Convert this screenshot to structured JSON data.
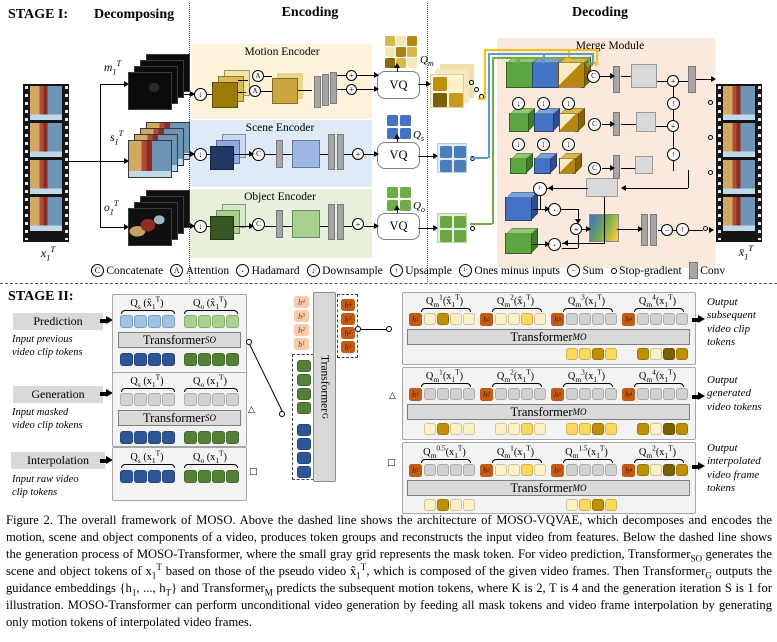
{
  "stage1": {
    "label": "STAGE I:",
    "col_decomposing": "Decomposing",
    "col_encoding": "Encoding",
    "col_decoding": "Decoding",
    "input_video_label": "x~1~^T^",
    "output_video_label": "x̄~1~^T^",
    "frame_count": 4,
    "decomposed_labels": {
      "motion": "m~1~^T^",
      "scene": "s~1~^T^",
      "object": "o~1~^T^"
    },
    "encoders": {
      "motion": {
        "title": "Motion Encoder",
        "vq_label": "VQ",
        "codebook_label": "Q~m~"
      },
      "scene": {
        "title": "Scene Encoder",
        "vq_label": "VQ",
        "codebook_label": "Q~s~"
      },
      "object": {
        "title": "Object Encoder",
        "vq_label": "VQ",
        "codebook_label": "Q~o~"
      }
    },
    "merge_module_title": "Merge Module",
    "codebooks": {
      "motion": [
        "#D8B94E",
        "#F5E8B8",
        "#B8860B",
        "#F5E8B8",
        "#A8811A",
        "#D8B94E",
        "#8A6D00",
        "#D8B94E",
        "#F5E8B8"
      ],
      "scene": [
        "#4472C4",
        "#4472C4",
        "#4472C4",
        "#4472C4"
      ],
      "object": [
        "#70AD47",
        "#70AD47",
        "#70AD47",
        "#70AD47"
      ]
    },
    "out_grids": {
      "motion": [
        "#BF9000",
        "#FCF0C5",
        "#7A6000",
        "#C79C1E"
      ],
      "scene": [
        "#4A7EBB",
        "#4A7EBB",
        "#4A7EBB",
        "#4A7EBB"
      ],
      "object": [
        "#6CA544",
        "#6CA544",
        "#6CA544",
        "#6CA544"
      ]
    }
  },
  "legend": {
    "items": [
      {
        "icon": "concatenate-icon",
        "shape": "circle",
        "glyph": "C",
        "label": "Concatenate"
      },
      {
        "icon": "attention-icon",
        "shape": "circle",
        "glyph": "A",
        "label": "Attention"
      },
      {
        "icon": "hadamard-icon",
        "shape": "circle",
        "glyph": "·",
        "label": "Hadamard"
      },
      {
        "icon": "downsample-icon",
        "shape": "circle",
        "glyph": "↓",
        "label": "Downsample"
      },
      {
        "icon": "upsample-icon",
        "shape": "circle",
        "glyph": "↑",
        "label": "Upsample"
      },
      {
        "icon": "ones-minus-inputs-icon",
        "shape": "circle",
        "glyph": "1-",
        "label": "Ones minus inputs"
      },
      {
        "icon": "sum-icon",
        "shape": "circle",
        "glyph": "−",
        "label": "Sum"
      },
      {
        "icon": "stop-gradient-icon",
        "shape": "dot",
        "glyph": "",
        "label": "Stop-gradient"
      },
      {
        "icon": "conv-icon",
        "shape": "bar",
        "glyph": "",
        "label": "Conv"
      }
    ]
  },
  "stage2": {
    "label": "STAGE II:",
    "tasks": [
      {
        "name": "Prediction",
        "desc": "Input previous\nvideo clip tokens",
        "marker": "○"
      },
      {
        "name": "Generation",
        "desc": "Input masked\nvideo clip tokens",
        "marker": "△"
      },
      {
        "name": "Interpolation",
        "desc": "Input raw video\nclip tokens",
        "marker": "□"
      }
    ],
    "so_panels": [
      {
        "labels": [
          "Q~s~ (x̂~1~^T^)",
          "Q~o~ (x̂~1~^T^)"
        ],
        "top_tokens": [
          "lblue",
          "lblue",
          "lblue",
          "lblue",
          "lgreen",
          "lgreen",
          "lgreen",
          "lgreen"
        ],
        "transformer": {
          "name": "Transformer",
          "sub": "SO"
        },
        "bottom_tokens": [
          "dblue",
          "dblue",
          "dblue",
          "dblue",
          "dgreen",
          "dgreen",
          "dgreen",
          "dgreen"
        ]
      },
      {
        "labels": [
          "Q~s~ (x~1~^T^)",
          "Q~o~ (x~1~^T^)"
        ],
        "top_tokens": [
          "mask",
          "mask",
          "mask",
          "mask",
          "mask",
          "mask",
          "mask",
          "mask"
        ],
        "transformer": {
          "name": "Transformer",
          "sub": "SO"
        },
        "bottom_tokens": [
          "dblue",
          "dblue",
          "dblue",
          "dblue",
          "dgreen",
          "dgreen",
          "dgreen",
          "dgreen"
        ]
      },
      {
        "labels": [
          "Q~s~ (x~1~^T^)",
          "Q~o~ (x~1~^T^)"
        ],
        "top_tokens": [
          "dblue",
          "dblue",
          "dblue",
          "dblue",
          "dgreen",
          "dgreen",
          "dgreen",
          "dgreen"
        ],
        "transformer": null,
        "bottom_tokens": null
      }
    ],
    "transformer_g": {
      "name": "Transformer",
      "sub": "G"
    },
    "guidance_in": [
      "h~4~",
      "h~3~",
      "h~2~",
      "h~1~"
    ],
    "guidance_out": [
      "h~4~",
      "h~3~",
      "h~2~",
      "h~1~"
    ],
    "g_input_tokens": [
      "dgreen",
      "dgreen",
      "dgreen",
      "dgreen",
      "dblue",
      "dblue",
      "dblue",
      "dblue"
    ],
    "mo_panels": [
      {
        "groups": [
          {
            "label": "Q~m~^1^(x̂~1~^T^)",
            "h": "h~1~",
            "tokens": [
              "cream",
              "gold",
              "cream",
              "cream"
            ]
          },
          {
            "label": "Q~m~^2^(x̂~1~^T^)",
            "h": "h~2~",
            "tokens": [
              "cream",
              "cream",
              "yellow",
              "cream"
            ]
          },
          {
            "label": "Q~m~^3^(x~1~^T^)",
            "h": "h~3~",
            "tokens": [
              "mask",
              "mask",
              "mask",
              "mask"
            ]
          },
          {
            "label": "Q~m~^4^(x~1~^T^)",
            "h": "h~4~",
            "tokens": [
              "mask",
              "mask",
              "mask",
              "mask"
            ]
          }
        ],
        "transformer": {
          "name": "Transformer",
          "sub": "MO"
        },
        "outputs": [
          null,
          null,
          [
            "yellow",
            "yellow",
            "gold",
            "yellow"
          ],
          [
            "gold",
            "cream",
            "dgold",
            "gold"
          ]
        ]
      },
      {
        "groups": [
          {
            "label": "Q~m~^1^(x~1~^T^)",
            "h": "h~1~",
            "tokens": [
              "mask",
              "mask",
              "mask",
              "mask"
            ]
          },
          {
            "label": "Q~m~^2^(x~1~^T^)",
            "h": "h~2~",
            "tokens": [
              "mask",
              "mask",
              "mask",
              "mask"
            ]
          },
          {
            "label": "Q~m~^3^(x~1~^T^)",
            "h": "h~3~",
            "tokens": [
              "mask",
              "mask",
              "mask",
              "mask"
            ]
          },
          {
            "label": "Q~m~^4^(x~1~^T^)",
            "h": "h~4~",
            "tokens": [
              "mask",
              "mask",
              "mask",
              "mask"
            ]
          }
        ],
        "transformer": {
          "name": "Transformer",
          "sub": "MO"
        },
        "outputs": [
          [
            "cream",
            "gold",
            "cream",
            "cream"
          ],
          [
            "cream",
            "cream",
            "yellow",
            "cream"
          ],
          [
            "yellow",
            "yellow",
            "gold",
            "yellow"
          ],
          [
            "gold",
            "cream",
            "dgold",
            "gold"
          ]
        ]
      },
      {
        "groups": [
          {
            "label": "Q~m~^0.5^(x~1~^T^)",
            "h": "h~1~",
            "tokens": [
              "mask",
              "mask",
              "mask",
              "mask"
            ]
          },
          {
            "label": "Q~m~^1^(x~1~^T^)",
            "h": "h~2~",
            "tokens": [
              "cream",
              "cream",
              "yellow",
              "cream"
            ]
          },
          {
            "label": "Q~m~^1.5^(x~1~^T^)",
            "h": "h~3~",
            "tokens": [
              "mask",
              "mask",
              "mask",
              "mask"
            ]
          },
          {
            "label": "Q~m~^2^(x~1~^T^)",
            "h": "h~4~",
            "tokens": [
              "gold",
              "cream",
              "dgold",
              "gold"
            ]
          }
        ],
        "transformer": {
          "name": "Transformer",
          "sub": "MO"
        },
        "outputs": [
          [
            "cream",
            "gold",
            "cream",
            "cream"
          ],
          null,
          [
            "cream",
            "yellow",
            "gold",
            "yellow"
          ],
          null
        ]
      }
    ],
    "outputs": [
      {
        "text": "Output subsequent video clip tokens"
      },
      {
        "text": "Output generated video tokens"
      },
      {
        "text": "Output interpolated video frame tokens"
      }
    ]
  },
  "colors": {
    "lblue": "#9DC3E6",
    "dblue": "#2E5597",
    "lgreen": "#A9D18E",
    "dgreen": "#538135",
    "mask": "#D2D2D2",
    "cream": "#FCF0C5",
    "yellow": "#FFD95C",
    "gold": "#BF9000",
    "dgold": "#7A6000",
    "lorange": "#F8CBAD",
    "dorange": "#C55A11"
  },
  "caption": "Figure 2.  The overall framework of MOSO. Above the dashed line shows the architecture of MOSO-VQVAE, which decomposes and encodes the motion, scene and object components of a video, produces token groups and reconstructs the input video from features. Below the dashed line shows the generation process of MOSO-Transformer, where the small gray grid represents the mask token. For video prediction, Transformer~SO~ generates the scene and object tokens of x~1~^T^ based on those of the pseudo video x̂~1~^T^, which is composed of the given video frames. Then Transformer~G~ outputs the guidance embeddings {h~1~, ..., h~T~} and Transformer~M~ predicts the subsequent motion tokens, where K is 2, T is 4 and the generation iteration S is 1 for illustration. MOSO-Transformer can perform unconditional video generation by feeding all mask tokens and video frame interpolation by generating only motion tokens of interpolated video frames."
}
